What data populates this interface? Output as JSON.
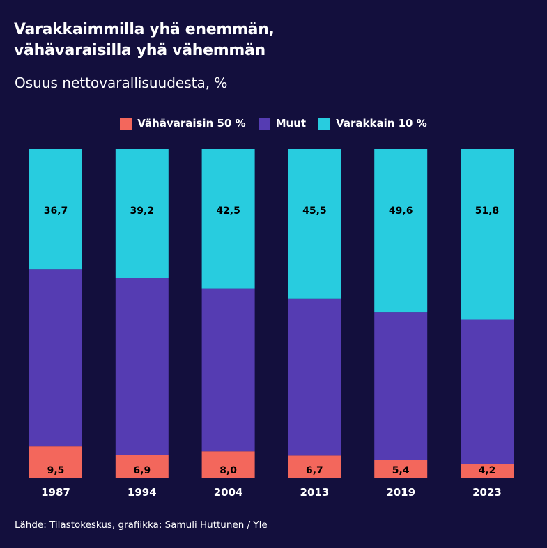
{
  "header": {
    "title_line1": "Varakkaimmilla yhä enemmän,",
    "title_line2": "vähävaraisilla yhä vähemmän",
    "subtitle": "Osuus nettovarallisuudesta, %"
  },
  "footer": {
    "source": "Lähde: Tilastokeskus, grafiikka: Samuli Huttunen / Yle"
  },
  "colors": {
    "background": "#130f3d",
    "bottom50": "#f3675c",
    "others": "#553cb2",
    "top10": "#28ccdf"
  },
  "chart_data": {
    "type": "bar",
    "stacked": true,
    "title": "Varakkaimmilla yhä enemmän, vähävaraisilla yhä vähemmän",
    "subtitle": "Osuus nettovarallisuudesta, %",
    "xlabel": "",
    "ylabel": "",
    "ylim": [
      0,
      100
    ],
    "grid": false,
    "legend_position": "top-center",
    "categories": [
      "1987",
      "1994",
      "2004",
      "2013",
      "2019",
      "2023"
    ],
    "series": [
      {
        "name": "Vähävaraisin 50 %",
        "color": "#f3675c",
        "values": [
          9.5,
          6.9,
          8.0,
          6.7,
          5.4,
          4.2
        ],
        "labels": [
          "9,5",
          "6,9",
          "8,0",
          "6,7",
          "5,4",
          "4,2"
        ]
      },
      {
        "name": "Muut",
        "color": "#553cb2",
        "values": [
          53.8,
          53.9,
          49.5,
          47.8,
          45.0,
          44.0
        ],
        "labels": null
      },
      {
        "name": "Varakkain 10 %",
        "color": "#28ccdf",
        "values": [
          36.7,
          39.2,
          42.5,
          45.5,
          49.6,
          51.8
        ],
        "labels": [
          "36,7",
          "39,2",
          "42,5",
          "45,5",
          "49,6",
          "51,8"
        ]
      }
    ]
  }
}
